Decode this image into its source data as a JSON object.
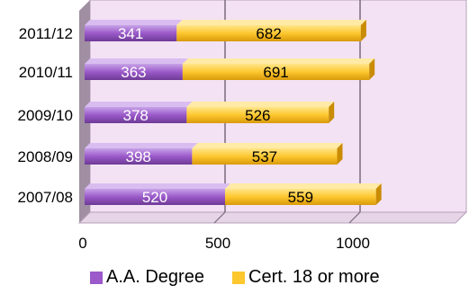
{
  "chart_data": {
    "type": "bar",
    "orientation": "horizontal",
    "stacked": true,
    "categories": [
      "2011/12",
      "2010/11",
      "2009/10",
      "2008/09",
      "2007/08"
    ],
    "series": [
      {
        "name": "A.A. Degree",
        "values": [
          341,
          363,
          378,
          398,
          520
        ],
        "color": "#9b59c9"
      },
      {
        "name": "Cert. 18 or more",
        "values": [
          682,
          691,
          526,
          537,
          559
        ],
        "color": "#fdc72f"
      }
    ],
    "x_ticks": [
      "0",
      "500",
      "1000"
    ],
    "xlim": [
      0,
      1400
    ],
    "grid": true,
    "legend_position": "bottom"
  }
}
